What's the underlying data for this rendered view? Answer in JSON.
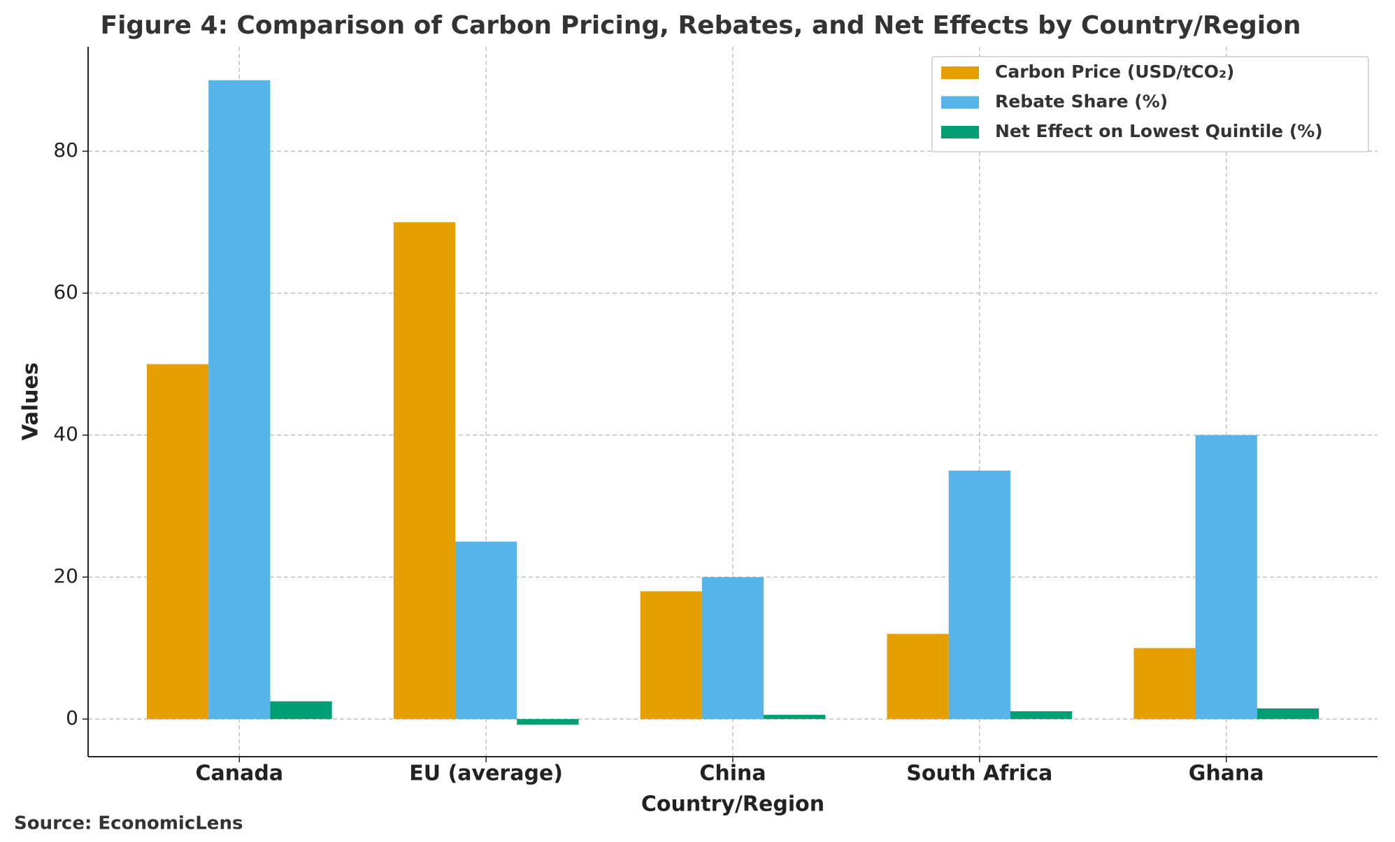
{
  "chart_data": {
    "type": "bar",
    "title": "Figure 4: Comparison of Carbon Pricing, Rebates, and Net Effects by Country/Region",
    "x_label": "Country/Region",
    "y_label": "Values",
    "source": "Source: EconomicLens",
    "categories": [
      "Canada",
      "EU (average)",
      "China",
      "South Africa",
      "Ghana"
    ],
    "series": [
      {
        "name": "Carbon Price (USD/tCO₂)",
        "color": "#E69F00",
        "values": [
          50,
          70,
          18,
          12,
          10
        ]
      },
      {
        "name": "Rebate Share (%)",
        "color": "#56B4E9",
        "values": [
          90,
          25,
          20,
          35,
          40
        ]
      },
      {
        "name": "Net Effect on Lowest Quintile (%)",
        "color": "#009E73",
        "values": [
          2.5,
          -0.8,
          0.6,
          1.1,
          1.5
        ]
      }
    ],
    "ylim": [
      -5.3,
      94.7
    ],
    "yticks": [
      0,
      20,
      40,
      60,
      80
    ],
    "grid": true,
    "legend": "upper right"
  }
}
